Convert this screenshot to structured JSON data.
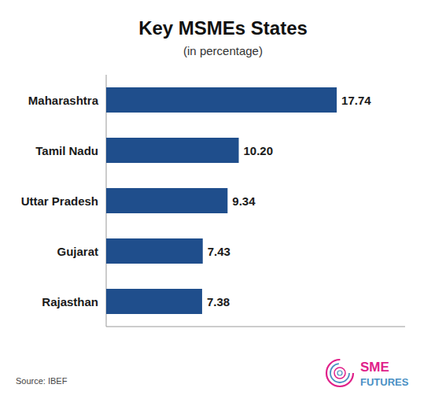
{
  "chart_data": {
    "type": "bar",
    "orientation": "horizontal",
    "title": "Key MSMEs States",
    "subtitle": "(in percentage)",
    "categories": [
      "Maharashtra",
      "Tamil Nadu",
      "Uttar Pradesh",
      "Gujarat",
      "Rajasthan"
    ],
    "values": [
      17.74,
      10.2,
      9.34,
      7.43,
      7.38
    ],
    "value_labels": [
      "17.74",
      "10.20",
      "9.34",
      "7.43",
      "7.38"
    ],
    "data_labels": true,
    "color": "#1f4e8c",
    "xlim": [
      0,
      23
    ],
    "tick_labels": false,
    "grid": false,
    "annotations": [
      {
        "text": "Source: IBEF"
      },
      {
        "text": "SME",
        "color": "#e0218a"
      },
      {
        "text": "FUTURES",
        "color": "#4a90c4"
      }
    ]
  }
}
